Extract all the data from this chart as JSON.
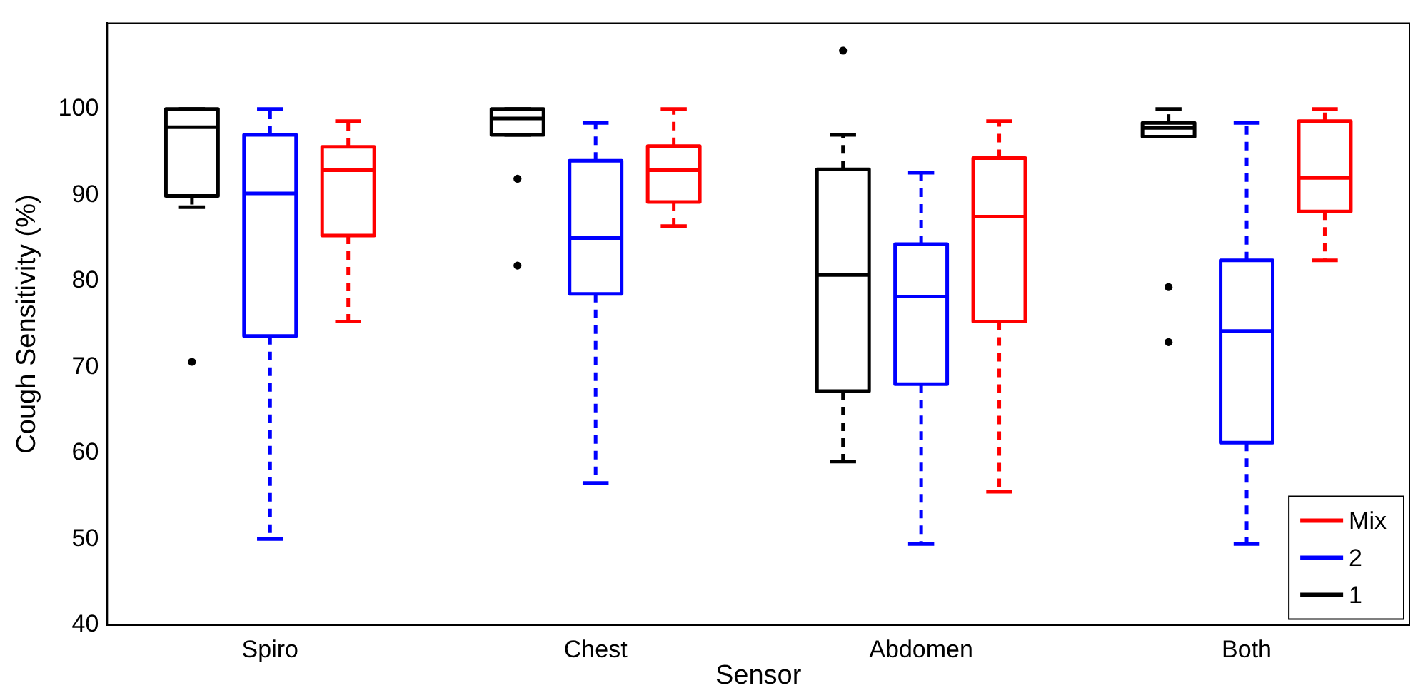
{
  "chart_data": {
    "type": "box",
    "xlabel": "Sensor",
    "ylabel": "Cough Sensitivity (%)",
    "categories": [
      "Spiro",
      "Chest",
      "Abdomen",
      "Both"
    ],
    "ylim": [
      40,
      110
    ],
    "yticks": [
      40,
      50,
      60,
      70,
      80,
      90,
      100
    ],
    "legend": "bottom right",
    "line_style": "dashed",
    "marker": "circle",
    "series": [
      {
        "name": "1",
        "color": "#000000",
        "boxes": [
          {
            "low": 88.6,
            "q1": 89.9,
            "median": 97.9,
            "q3": 100,
            "high": 100,
            "outliers": [
              70.6
            ]
          },
          {
            "low": 97.0,
            "q1": 97.0,
            "median": 98.9,
            "q3": 100,
            "high": 100,
            "outliers": [
              91.9,
              81.8
            ]
          },
          {
            "low": 59.0,
            "q1": 67.2,
            "median": 80.7,
            "q3": 93.0,
            "high": 97.0,
            "outliers": [
              106.8
            ]
          },
          {
            "low": 96.8,
            "q1": 96.8,
            "median": 97.8,
            "q3": 98.4,
            "high": 100,
            "outliers": [
              79.3,
              72.9
            ]
          }
        ]
      },
      {
        "name": "2",
        "color": "#0000ff",
        "boxes": [
          {
            "low": 50.0,
            "q1": 73.6,
            "median": 90.2,
            "q3": 97.0,
            "high": 100
          },
          {
            "low": 56.5,
            "q1": 78.5,
            "median": 85.0,
            "q3": 94.0,
            "high": 98.4
          },
          {
            "low": 49.4,
            "q1": 68.0,
            "median": 78.2,
            "q3": 84.3,
            "high": 92.6
          },
          {
            "low": 49.4,
            "q1": 61.2,
            "median": 74.2,
            "q3": 82.4,
            "high": 98.4
          }
        ]
      },
      {
        "name": "Mix",
        "color": "#ff0000",
        "boxes": [
          {
            "low": 75.3,
            "q1": 85.3,
            "median": 92.9,
            "q3": 95.6,
            "high": 98.6
          },
          {
            "low": 86.4,
            "q1": 89.2,
            "median": 92.9,
            "q3": 95.7,
            "high": 100
          },
          {
            "low": 55.5,
            "q1": 75.3,
            "median": 87.5,
            "q3": 94.3,
            "high": 98.6
          },
          {
            "low": 82.4,
            "q1": 88.1,
            "median": 92.0,
            "q3": 98.6,
            "high": 100
          }
        ]
      }
    ]
  }
}
